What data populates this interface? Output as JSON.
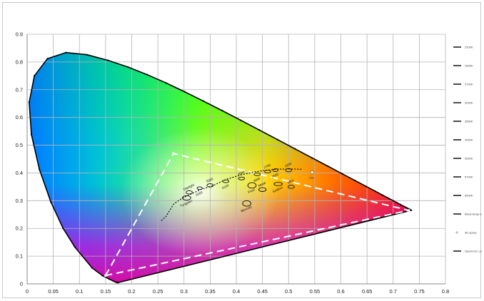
{
  "chart_data": {
    "type": "scatter",
    "title": "",
    "xlabel": "",
    "ylabel": "",
    "xlim": [
      0,
      0.8
    ],
    "ylim": [
      0,
      0.9
    ],
    "grid": true,
    "legend_position": "right",
    "x_ticks": [
      "0",
      "0.05",
      "0.1",
      "0.15",
      "0.2",
      "0.25",
      "0.3",
      "0.35",
      "0.4",
      "0.45",
      "0.5",
      "0.55",
      "0.6",
      "0.65",
      "0.7",
      "0.75",
      "0.8"
    ],
    "y_ticks": [
      "0",
      "0.1",
      "0.2",
      "0.3",
      "0.4",
      "0.5",
      "0.6",
      "0.7",
      "0.8",
      "0.9"
    ],
    "spectral_locus": [
      [
        0.1741,
        0.005
      ],
      [
        0.1738,
        0.0049
      ],
      [
        0.1733,
        0.0048
      ],
      [
        0.1726,
        0.0048
      ],
      [
        0.1714,
        0.0051
      ],
      [
        0.1689,
        0.0069
      ],
      [
        0.1644,
        0.0109
      ],
      [
        0.1566,
        0.0177
      ],
      [
        0.144,
        0.0297
      ],
      [
        0.1241,
        0.0578
      ],
      [
        0.0913,
        0.1327
      ],
      [
        0.0687,
        0.2007
      ],
      [
        0.0454,
        0.295
      ],
      [
        0.0235,
        0.4127
      ],
      [
        0.0082,
        0.5384
      ],
      [
        0.0039,
        0.6548
      ],
      [
        0.0139,
        0.7502
      ],
      [
        0.0389,
        0.812
      ],
      [
        0.0743,
        0.8338
      ],
      [
        0.1142,
        0.8262
      ],
      [
        0.1547,
        0.8059
      ],
      [
        0.1929,
        0.7816
      ],
      [
        0.2296,
        0.7543
      ],
      [
        0.2658,
        0.7243
      ],
      [
        0.3016,
        0.6923
      ],
      [
        0.3373,
        0.6589
      ],
      [
        0.3731,
        0.6245
      ],
      [
        0.4087,
        0.5896
      ],
      [
        0.4441,
        0.5547
      ],
      [
        0.4788,
        0.5202
      ],
      [
        0.5125,
        0.4866
      ],
      [
        0.5448,
        0.4544
      ],
      [
        0.5752,
        0.4242
      ],
      [
        0.6029,
        0.3965
      ],
      [
        0.627,
        0.3725
      ],
      [
        0.6482,
        0.3514
      ],
      [
        0.6658,
        0.334
      ],
      [
        0.6801,
        0.3197
      ],
      [
        0.6915,
        0.3083
      ],
      [
        0.7006,
        0.2993
      ],
      [
        0.7079,
        0.292
      ],
      [
        0.714,
        0.2859
      ],
      [
        0.719,
        0.2809
      ],
      [
        0.723,
        0.277
      ],
      [
        0.726,
        0.274
      ],
      [
        0.7283,
        0.2717
      ],
      [
        0.73,
        0.27
      ],
      [
        0.7311,
        0.2689
      ],
      [
        0.732,
        0.268
      ],
      [
        0.7334,
        0.2666
      ],
      [
        0.7347,
        0.2653
      ]
    ],
    "black_body_locus": [
      [
        0.2566,
        0.2277
      ],
      [
        0.2653,
        0.2426
      ],
      [
        0.2806,
        0.2883
      ],
      [
        0.2952,
        0.3075
      ],
      [
        0.3131,
        0.3236
      ],
      [
        0.3324,
        0.3405
      ],
      [
        0.3548,
        0.3539
      ],
      [
        0.3805,
        0.3768
      ],
      [
        0.4101,
        0.3936
      ],
      [
        0.4369,
        0.4041
      ],
      [
        0.4599,
        0.4106
      ],
      [
        0.4781,
        0.4137
      ],
      [
        0.502,
        0.414
      ],
      [
        0.5266,
        0.4133
      ]
    ],
    "gamut_triangle": [
      [
        0.15,
        0.03
      ],
      [
        0.28,
        0.47
      ],
      [
        0.73,
        0.265
      ]
    ],
    "gamut_vertex_sizes": [
      [
        0.715,
        0.28
      ]
    ],
    "bbl_marker": [
      0.545,
      0.402
    ],
    "ellipses": [
      {
        "name": "Tungsten",
        "x": 0.305,
        "y": 0.31,
        "rx": 0.008,
        "ry": 0.008
      },
      {
        "name": "Daylight",
        "x": 0.31,
        "y": 0.33,
        "rx": 0.006,
        "ry": 0.006
      },
      {
        "name": "6500",
        "x": 0.33,
        "y": 0.345,
        "rx": 0.005,
        "ry": 0.005
      },
      {
        "name": "5000",
        "x": 0.35,
        "y": 0.355,
        "rx": 0.006,
        "ry": 0.006
      },
      {
        "name": "4100",
        "x": 0.38,
        "y": 0.37,
        "rx": 0.006,
        "ry": 0.005
      },
      {
        "name": "3500",
        "x": 0.41,
        "y": 0.38,
        "rx": 0.006,
        "ry": 0.005
      },
      {
        "name": "3000",
        "x": 0.44,
        "y": 0.395,
        "rx": 0.006,
        "ry": 0.005
      },
      {
        "name": "2700",
        "x": 0.46,
        "y": 0.405,
        "rx": 0.006,
        "ry": 0.005
      },
      {
        "name": "2500",
        "x": 0.475,
        "y": 0.41,
        "rx": 0.005,
        "ry": 0.005
      },
      {
        "name": "2200",
        "x": 0.5,
        "y": 0.41,
        "rx": 0.006,
        "ry": 0.006
      },
      {
        "name": "Fluor",
        "x": 0.43,
        "y": 0.355,
        "rx": 0.008,
        "ry": 0.01
      },
      {
        "name": "Metal",
        "x": 0.45,
        "y": 0.34,
        "rx": 0.007,
        "ry": 0.007
      },
      {
        "name": "Sodium",
        "x": 0.48,
        "y": 0.36,
        "rx": 0.008,
        "ry": 0.006
      },
      {
        "name": "HPS",
        "x": 0.505,
        "y": 0.35,
        "rx": 0.006,
        "ry": 0.006
      },
      {
        "name": "Mercury",
        "x": 0.42,
        "y": 0.29,
        "rx": 0.008,
        "ry": 0.01
      }
    ],
    "legend": {
      "entries": [
        "2200K",
        "2500K",
        "2700K",
        "3000K",
        "3500K",
        "4000K",
        "5000K",
        "5700K",
        "6500K",
        "Black Body Locus",
        "3D space",
        "Spectrum Locus (CIE 1931)"
      ]
    },
    "colors": {
      "spectral_locus": "#000000",
      "gamut": "#ffffff",
      "black_body": "#000000",
      "grid": "#b4b4b4"
    }
  }
}
